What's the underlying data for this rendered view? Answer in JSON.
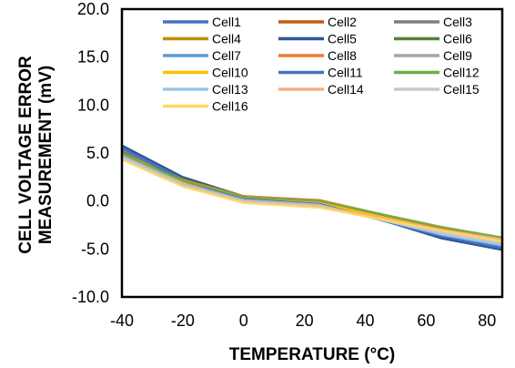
{
  "chart_data": {
    "type": "line",
    "xlabel": "TEMPERATURE (°C)",
    "ylabel_lines": [
      "CELL VOLTAGE ERROR",
      "MEASUREMENT (mV)"
    ],
    "xlim": [
      -40,
      85
    ],
    "ylim": [
      -10,
      20
    ],
    "xticks": [
      -40,
      -20,
      0,
      20,
      40,
      60,
      80
    ],
    "xtick_labels": [
      "-40",
      "-20",
      "0",
      "20",
      "40",
      "60",
      "80"
    ],
    "yticks": [
      -10,
      -5,
      0,
      5,
      10,
      15,
      20
    ],
    "ytick_labels": [
      "-10.0",
      "-5.0",
      "0.0",
      "5.0",
      "10.0",
      "15.0",
      "20.0"
    ],
    "grid": false,
    "legend_position": "top",
    "x": [
      -40,
      -20,
      0,
      25,
      65,
      85
    ],
    "series": [
      {
        "name": "Cell1",
        "color": "#4472C4",
        "values": [
          5.6,
          2.3,
          0.4,
          0.0,
          -3.8,
          -5.0
        ]
      },
      {
        "name": "Cell2",
        "color": "#C55A11",
        "values": [
          5.3,
          2.3,
          0.5,
          0.0,
          -3.0,
          -4.0
        ]
      },
      {
        "name": "Cell3",
        "color": "#7F7F7F",
        "values": [
          5.2,
          2.2,
          0.4,
          -0.1,
          -3.2,
          -4.2
        ]
      },
      {
        "name": "Cell4",
        "color": "#BF9000",
        "values": [
          5.0,
          2.1,
          0.4,
          -0.1,
          -3.1,
          -4.1
        ]
      },
      {
        "name": "Cell5",
        "color": "#2F5597",
        "values": [
          5.8,
          2.5,
          0.5,
          0.0,
          -3.9,
          -5.1
        ]
      },
      {
        "name": "Cell6",
        "color": "#548235",
        "values": [
          5.2,
          2.3,
          0.5,
          0.0,
          -2.9,
          -3.9
        ]
      },
      {
        "name": "Cell7",
        "color": "#5B9BD5",
        "values": [
          5.4,
          2.2,
          0.3,
          -0.2,
          -3.6,
          -4.8
        ]
      },
      {
        "name": "Cell8",
        "color": "#ED7D31",
        "values": [
          5.0,
          2.2,
          0.5,
          0.1,
          -2.8,
          -3.8
        ]
      },
      {
        "name": "Cell9",
        "color": "#A5A5A5",
        "values": [
          4.9,
          2.0,
          0.3,
          -0.2,
          -3.3,
          -4.4
        ]
      },
      {
        "name": "Cell10",
        "color": "#FFC000",
        "values": [
          4.8,
          2.0,
          0.3,
          -0.2,
          -3.0,
          -4.0
        ]
      },
      {
        "name": "Cell11",
        "color": "#4472C4",
        "values": [
          5.5,
          2.1,
          0.2,
          -0.3,
          -3.7,
          -4.9
        ]
      },
      {
        "name": "Cell12",
        "color": "#70AD47",
        "values": [
          4.9,
          2.1,
          0.4,
          0.0,
          -2.7,
          -3.8
        ]
      },
      {
        "name": "Cell13",
        "color": "#9DC3E6",
        "values": [
          4.7,
          1.8,
          0.1,
          -0.4,
          -3.5,
          -4.6
        ]
      },
      {
        "name": "Cell14",
        "color": "#F4B183",
        "values": [
          4.5,
          1.7,
          0.0,
          -0.5,
          -3.0,
          -4.0
        ]
      },
      {
        "name": "Cell15",
        "color": "#C9C9C9",
        "values": [
          4.5,
          1.6,
          -0.1,
          -0.6,
          -3.3,
          -4.4
        ]
      },
      {
        "name": "Cell16",
        "color": "#FFD966",
        "values": [
          4.3,
          1.5,
          -0.2,
          -0.7,
          -3.1,
          -4.2
        ]
      }
    ]
  }
}
